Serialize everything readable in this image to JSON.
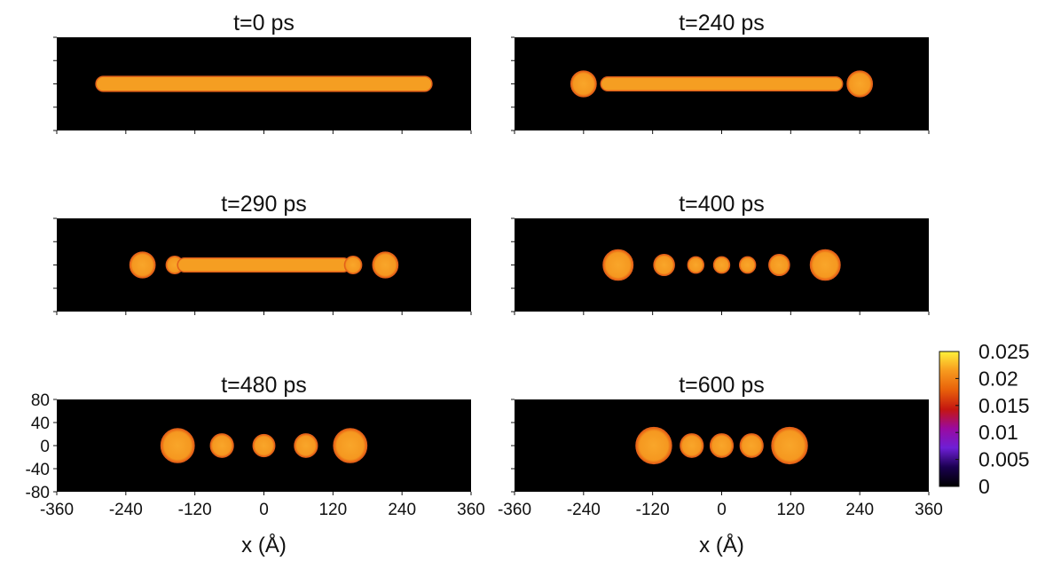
{
  "chart_data": {
    "type": "heatmap",
    "panels": [
      {
        "title": "t=0 ps",
        "blobs": [
          {
            "shape": "rod",
            "x_start": -292,
            "x_end": 292,
            "half_height": 13,
            "value": 0.02
          }
        ]
      },
      {
        "title": "t=240 ps",
        "blobs": [
          {
            "shape": "bulb",
            "x": -240,
            "radius": 22,
            "value": 0.02
          },
          {
            "shape": "rod",
            "x_start": -210,
            "x_end": 210,
            "half_height": 12,
            "value": 0.02
          },
          {
            "shape": "bulb",
            "x": 240,
            "radius": 22,
            "value": 0.02
          }
        ]
      },
      {
        "title": "t=290 ps",
        "blobs": [
          {
            "shape": "bulb",
            "x": -211,
            "radius": 22,
            "value": 0.02
          },
          {
            "shape": "bulb",
            "x": -155,
            "radius": 15,
            "value": 0.02
          },
          {
            "shape": "rod",
            "x_start": -150,
            "x_end": 150,
            "half_height": 12,
            "value": 0.02
          },
          {
            "shape": "bulb",
            "x": 155,
            "radius": 15,
            "value": 0.02
          },
          {
            "shape": "bulb",
            "x": 211,
            "radius": 22,
            "value": 0.02
          }
        ]
      },
      {
        "title": "t=400 ps",
        "blobs": [
          {
            "shape": "bulb",
            "x": -180,
            "radius": 26,
            "value": 0.02
          },
          {
            "shape": "bulb",
            "x": -100,
            "radius": 18,
            "value": 0.02
          },
          {
            "shape": "bulb",
            "x": -45,
            "radius": 14,
            "value": 0.02
          },
          {
            "shape": "bulb",
            "x": 0,
            "radius": 14,
            "value": 0.02
          },
          {
            "shape": "bulb",
            "x": 45,
            "radius": 14,
            "value": 0.02
          },
          {
            "shape": "bulb",
            "x": 100,
            "radius": 18,
            "value": 0.02
          },
          {
            "shape": "bulb",
            "x": 180,
            "radius": 26,
            "value": 0.02
          }
        ]
      },
      {
        "title": "t=480 ps",
        "blobs": [
          {
            "shape": "bulb",
            "x": -150,
            "radius": 29,
            "value": 0.02
          },
          {
            "shape": "bulb",
            "x": -73,
            "radius": 20,
            "value": 0.02
          },
          {
            "shape": "bulb",
            "x": 0,
            "radius": 19,
            "value": 0.02
          },
          {
            "shape": "bulb",
            "x": 73,
            "radius": 20,
            "value": 0.02
          },
          {
            "shape": "bulb",
            "x": 150,
            "radius": 29,
            "value": 0.02
          }
        ]
      },
      {
        "title": "t=600 ps",
        "blobs": [
          {
            "shape": "bulb",
            "x": -118,
            "radius": 31,
            "value": 0.02
          },
          {
            "shape": "bulb",
            "x": -52,
            "radius": 20,
            "value": 0.02
          },
          {
            "shape": "bulb",
            "x": 0,
            "radius": 20,
            "value": 0.02
          },
          {
            "shape": "bulb",
            "x": 52,
            "radius": 20,
            "value": 0.02
          },
          {
            "shape": "bulb",
            "x": 118,
            "radius": 31,
            "value": 0.02
          }
        ]
      }
    ],
    "xlabel": "x  (Å)",
    "xlim": [
      -360,
      360
    ],
    "ylim": [
      -80,
      80
    ],
    "x_ticks": [
      -360,
      -240,
      -120,
      0,
      120,
      240,
      360
    ],
    "x_tick_labels": [
      "-360",
      "-240",
      "-120",
      "0",
      "120",
      "240",
      "360"
    ],
    "y_ticks": [
      80,
      40,
      0,
      -40,
      -80
    ],
    "y_tick_labels": [
      "80",
      "40",
      "0",
      "-40",
      "-80"
    ],
    "colorbar": {
      "range": [
        0,
        0.025
      ],
      "ticks": [
        0.025,
        0.02,
        0.015,
        0.01,
        0.005,
        0
      ],
      "tick_labels": [
        "0.025",
        "0.02",
        "0.015",
        "0.01",
        "0.005",
        "0"
      ],
      "colormap": [
        "#000000",
        "#1a0050",
        "#6e1fd6",
        "#9a0aa0",
        "#c41610",
        "#e8600a",
        "#f79a1e",
        "#fff13a"
      ]
    },
    "background_color": "#000000"
  }
}
